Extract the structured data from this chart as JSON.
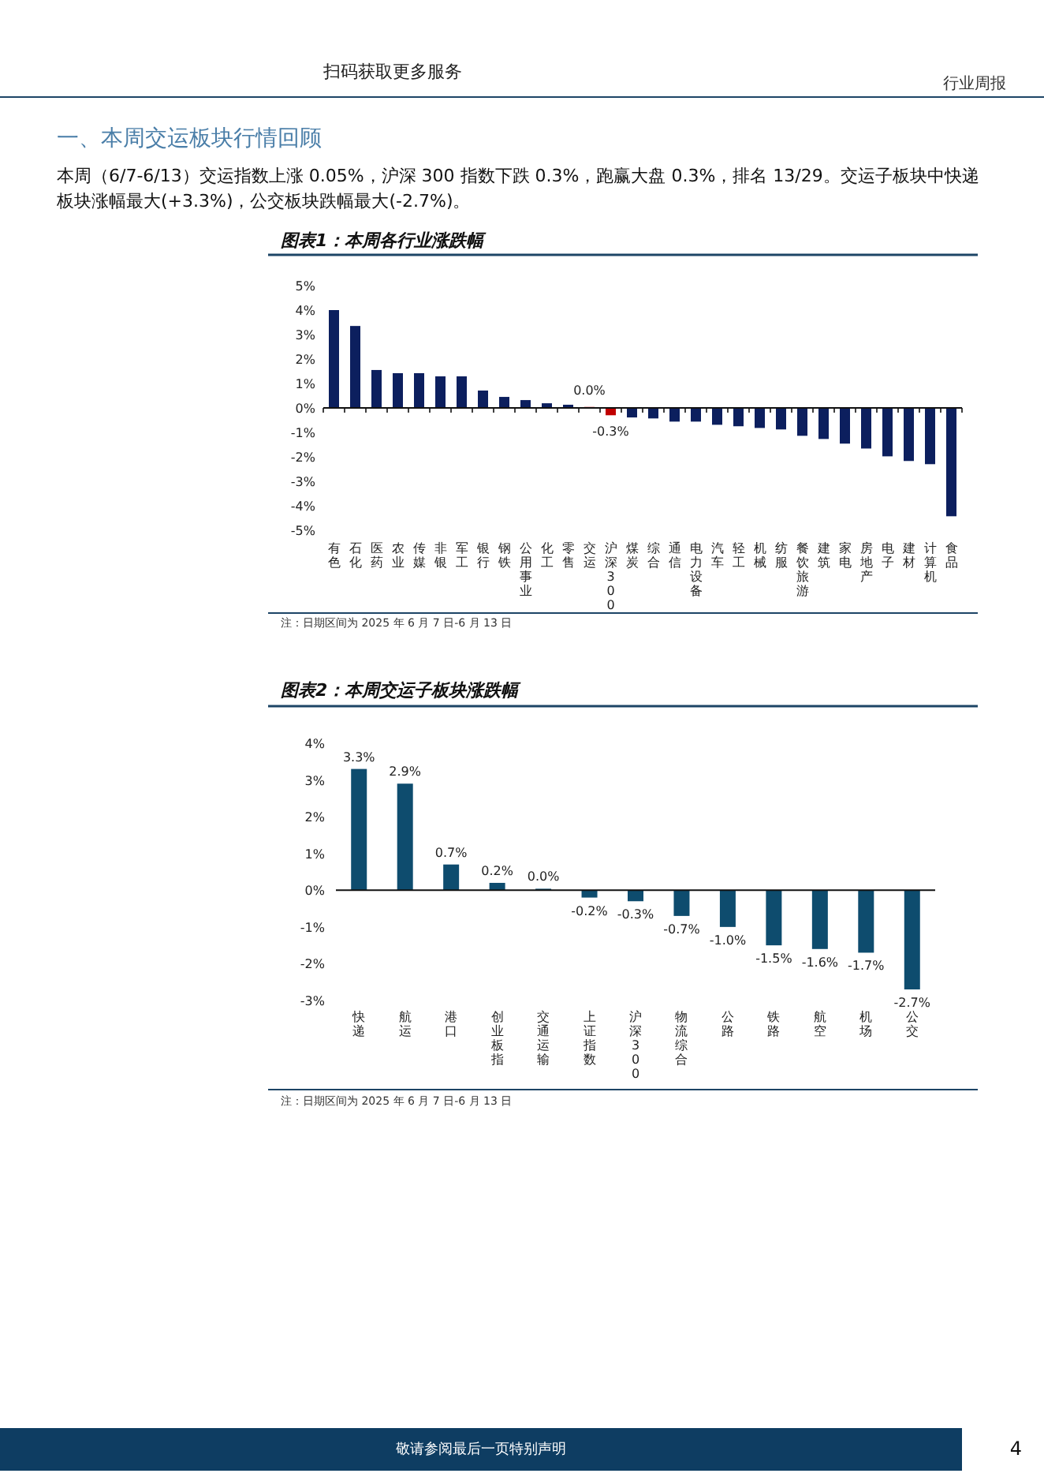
{
  "chart_data": [
    {
      "type": "other",
      "annotations": [
        "扫码获取更多服务",
        "行业周报",
        "一、本周交运板块行情回顾",
        "本周（6/7-6/13）交运指数上涨 0.05%，沪深 300 指数下跌 0.3%，跑赢大盘 0.3%，排名 13/29。交运子板块中快递板块涨幅最大(+3.3%)，公交板块跌幅最大(-2.7%)。"
      ]
    },
    {
      "type": "bar",
      "title": "图表1：本周各行业涨跌幅",
      "categories": [
        "有色",
        "石化",
        "医药",
        "农业",
        "传媒",
        "非银",
        "军工",
        "银行",
        "钢铁",
        "公用事业",
        "化工",
        "零售",
        "交运",
        "沪深300",
        "煤炭",
        "综合",
        "通信",
        "电力设备",
        "汽车",
        "轻工",
        "机械",
        "纺服",
        "餐饮旅游",
        "建筑",
        "家电",
        "房地产",
        "电子",
        "建材",
        "计算机",
        "食品"
      ],
      "values": [
        4.0,
        3.35,
        1.55,
        1.42,
        1.42,
        1.29,
        1.29,
        0.71,
        0.45,
        0.32,
        0.19,
        0.13,
        0.04,
        -0.3,
        -0.39,
        -0.43,
        -0.56,
        -0.56,
        -0.69,
        -0.75,
        -0.82,
        -0.88,
        -1.14,
        -1.27,
        -1.46,
        -1.66,
        -1.98,
        -2.17,
        -2.3,
        -4.43
      ],
      "colors": [
        "#0c1f5e",
        "#0c1f5e",
        "#0c1f5e",
        "#0c1f5e",
        "#0c1f5e",
        "#0c1f5e",
        "#0c1f5e",
        "#0c1f5e",
        "#0c1f5e",
        "#0c1f5e",
        "#0c1f5e",
        "#0c1f5e",
        "#c00000",
        "#c00000",
        "#0c1f5e",
        "#0c1f5e",
        "#0c1f5e",
        "#0c1f5e",
        "#0c1f5e",
        "#0c1f5e",
        "#0c1f5e",
        "#0c1f5e",
        "#0c1f5e",
        "#0c1f5e",
        "#0c1f5e",
        "#0c1f5e",
        "#0c1f5e",
        "#0c1f5e",
        "#0c1f5e",
        "#0c1f5e"
      ],
      "value_labels": [
        null,
        null,
        null,
        null,
        null,
        null,
        null,
        null,
        null,
        null,
        null,
        null,
        "0.0%",
        "-0.3%",
        null,
        null,
        null,
        null,
        null,
        null,
        null,
        null,
        null,
        null,
        null,
        null,
        null,
        null,
        null,
        null
      ],
      "ylim": [
        -5,
        5
      ],
      "yticks": [
        {
          "value": 5,
          "label": "5%"
        },
        {
          "value": 4,
          "label": "4%"
        },
        {
          "value": 3,
          "label": "3%"
        },
        {
          "value": 2,
          "label": "2%"
        },
        {
          "value": 1,
          "label": "1%"
        },
        {
          "value": 0,
          "label": "0%"
        },
        {
          "value": -1,
          "label": "-1%"
        },
        {
          "value": -2,
          "label": "-2%"
        },
        {
          "value": -3,
          "label": "-3%"
        },
        {
          "value": -4,
          "label": "-4%"
        },
        {
          "value": -5,
          "label": "-5%"
        }
      ],
      "annotations": [
        "注：日期区间为 2025 年 6 月 7 日-6 月 13 日"
      ]
    },
    {
      "type": "bar",
      "title": "图表2：本周交运子板块涨跌幅",
      "categories": [
        "快递",
        "航运",
        "港口",
        "创业板指",
        "交通运输",
        "上证指数",
        "沪深300",
        "物流综合",
        "公路",
        "铁路",
        "航空",
        "机场",
        "公交"
      ],
      "values": [
        3.3,
        2.9,
        0.7,
        0.2,
        0.04,
        -0.2,
        -0.3,
        -0.7,
        -1.0,
        -1.5,
        -1.6,
        -1.7,
        -2.7
      ],
      "colors": [
        "#0e4c6e",
        "#0e4c6e",
        "#0e4c6e",
        "#0e4c6e",
        "#0e4c6e",
        "#0e4c6e",
        "#0e4c6e",
        "#0e4c6e",
        "#0e4c6e",
        "#0e4c6e",
        "#0e4c6e",
        "#0e4c6e",
        "#0e4c6e"
      ],
      "value_labels": [
        "3.3%",
        "2.9%",
        "0.7%",
        "0.2%",
        "0.0%",
        "-0.2%",
        "-0.3%",
        "-0.7%",
        "-1.0%",
        "-1.5%",
        "-1.6%",
        "-1.7%",
        "-2.7%"
      ],
      "ylim": [
        -3,
        4
      ],
      "yticks": [
        {
          "value": 4,
          "label": "4%"
        },
        {
          "value": 3,
          "label": "3%"
        },
        {
          "value": 2,
          "label": "2%"
        },
        {
          "value": 1,
          "label": "1%"
        },
        {
          "value": 0,
          "label": "0%"
        },
        {
          "value": -1,
          "label": "-1%"
        },
        {
          "value": -2,
          "label": "-2%"
        },
        {
          "value": -3,
          "label": "-3%"
        }
      ],
      "annotations": [
        "注：日期区间为 2025 年 6 月 7 日-6 月 13 日"
      ]
    },
    {
      "type": "other",
      "annotations": [
        "敬请参阅最后一页特别声明",
        "4"
      ]
    }
  ]
}
